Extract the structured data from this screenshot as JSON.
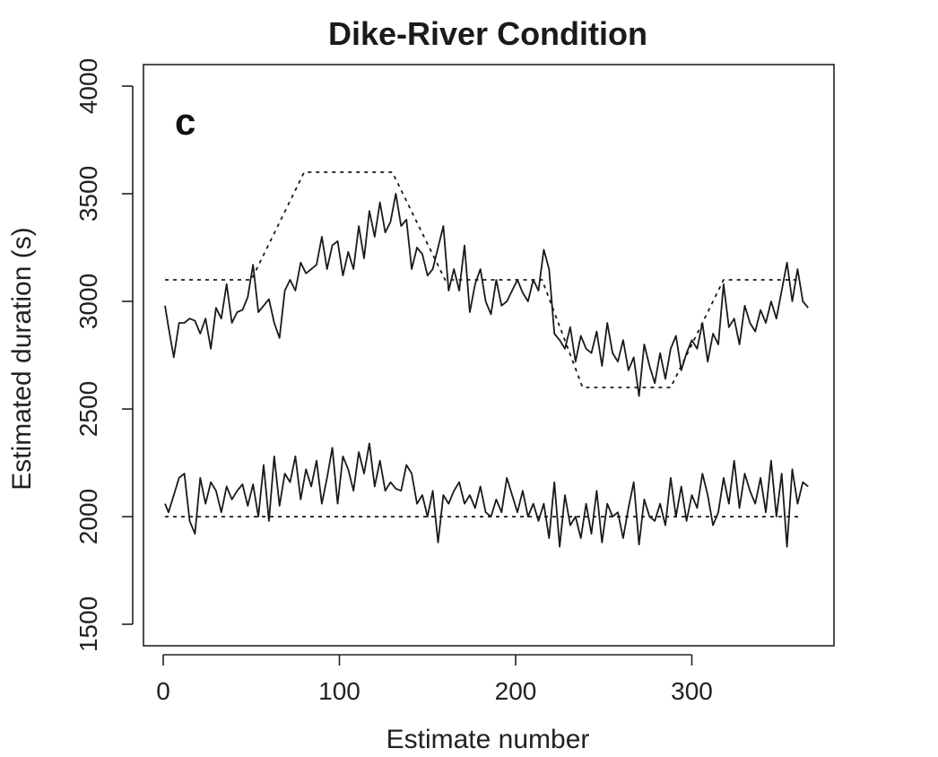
{
  "chart_data": {
    "type": "line",
    "title": "Dike-River Condition",
    "panel_label": "c",
    "xlabel": "Estimate number",
    "ylabel": "Estimated duration (s)",
    "xlim": [
      0,
      368
    ],
    "ylim": [
      1500,
      4000
    ],
    "x_ticks": [
      0,
      100,
      200,
      300
    ],
    "y_ticks": [
      1500,
      2000,
      2500,
      3000,
      3500,
      4000
    ],
    "grid": false,
    "series": [
      {
        "style": "dotted",
        "x": [
          1,
          50,
          80,
          130,
          160,
          215,
          238,
          288,
          318,
          362
        ],
        "y": [
          3100,
          3100,
          3600,
          3600,
          3100,
          3100,
          2600,
          2600,
          3100,
          3100
        ]
      },
      {
        "style": "solid",
        "x": [
          1,
          3,
          6,
          9,
          12,
          15,
          18,
          21,
          24,
          27,
          30,
          33,
          36,
          39,
          42,
          45,
          48,
          51,
          54,
          57,
          60,
          63,
          66,
          69,
          72,
          75,
          78,
          81,
          84,
          87,
          90,
          93,
          96,
          99,
          102,
          105,
          108,
          111,
          114,
          117,
          120,
          123,
          126,
          129,
          132,
          135,
          138,
          141,
          144,
          147,
          150,
          153,
          156,
          159,
          162,
          165,
          168,
          171,
          174,
          177,
          180,
          183,
          186,
          189,
          192,
          195,
          198,
          201,
          204,
          207,
          210,
          213,
          216,
          219,
          222,
          225,
          228,
          231,
          234,
          237,
          240,
          243,
          246,
          249,
          252,
          255,
          258,
          261,
          264,
          267,
          270,
          273,
          276,
          279,
          282,
          285,
          288,
          291,
          294,
          297,
          300,
          303,
          306,
          309,
          312,
          315,
          318,
          321,
          324,
          327,
          330,
          333,
          336,
          339,
          342,
          345,
          348,
          351,
          354,
          357,
          360,
          363,
          366
        ],
        "y": [
          2980,
          2880,
          2740,
          2900,
          2900,
          2920,
          2910,
          2850,
          2920,
          2780,
          2970,
          2920,
          3080,
          2900,
          2950,
          2960,
          3020,
          3170,
          2950,
          2980,
          3010,
          2900,
          2830,
          3050,
          3100,
          3050,
          3180,
          3130,
          3150,
          3170,
          3300,
          3150,
          3260,
          3280,
          3120,
          3230,
          3150,
          3350,
          3200,
          3420,
          3300,
          3460,
          3320,
          3370,
          3500,
          3350,
          3380,
          3150,
          3250,
          3220,
          3120,
          3150,
          3250,
          3350,
          3050,
          3150,
          3050,
          3260,
          2950,
          3080,
          3150,
          3000,
          2940,
          3100,
          2980,
          3000,
          3050,
          3100,
          3040,
          3000,
          3100,
          3050,
          3240,
          3150,
          2850,
          2820,
          2780,
          2880,
          2720,
          2840,
          2780,
          2760,
          2860,
          2700,
          2900,
          2760,
          2720,
          2820,
          2680,
          2740,
          2560,
          2800,
          2700,
          2620,
          2760,
          2640,
          2780,
          2840,
          2680,
          2760,
          2820,
          2780,
          2900,
          2720,
          2850,
          2800,
          3080,
          2880,
          2920,
          2800,
          2980,
          2900,
          2860,
          2960,
          2900,
          3000,
          2920,
          3050,
          3180,
          3000,
          3150,
          3000,
          2970
        ]
      },
      {
        "style": "dotted",
        "x": [
          1,
          362
        ],
        "y": [
          2000,
          2000
        ]
      },
      {
        "style": "solid",
        "x": [
          1,
          3,
          6,
          9,
          12,
          15,
          18,
          21,
          24,
          27,
          30,
          33,
          36,
          39,
          42,
          45,
          48,
          51,
          54,
          57,
          60,
          63,
          66,
          69,
          72,
          75,
          78,
          81,
          84,
          87,
          90,
          93,
          96,
          99,
          102,
          105,
          108,
          111,
          114,
          117,
          120,
          123,
          126,
          129,
          132,
          135,
          138,
          141,
          144,
          147,
          150,
          153,
          156,
          159,
          162,
          165,
          168,
          171,
          174,
          177,
          180,
          183,
          186,
          189,
          192,
          195,
          198,
          201,
          204,
          207,
          210,
          213,
          216,
          219,
          222,
          225,
          228,
          231,
          234,
          237,
          240,
          243,
          246,
          249,
          252,
          255,
          258,
          261,
          264,
          267,
          270,
          273,
          276,
          279,
          282,
          285,
          288,
          291,
          294,
          297,
          300,
          303,
          306,
          309,
          312,
          315,
          318,
          321,
          324,
          327,
          330,
          333,
          336,
          339,
          342,
          345,
          348,
          351,
          354,
          357,
          360,
          363,
          366
        ],
        "y": [
          2060,
          2020,
          2100,
          2180,
          2200,
          1980,
          1920,
          2180,
          2060,
          2160,
          2120,
          2020,
          2140,
          2080,
          2120,
          2150,
          2050,
          2150,
          2000,
          2240,
          1980,
          2280,
          2050,
          2200,
          2160,
          2280,
          2080,
          2220,
          2140,
          2260,
          2060,
          2180,
          2320,
          2060,
          2280,
          2220,
          2120,
          2300,
          2200,
          2340,
          2140,
          2260,
          2120,
          2160,
          2130,
          2120,
          2240,
          2200,
          2060,
          2100,
          2000,
          2120,
          1880,
          2100,
          2060,
          2120,
          2160,
          2060,
          2100,
          2040,
          2140,
          2020,
          2000,
          2080,
          2020,
          2180,
          2100,
          2020,
          2120,
          2000,
          2060,
          1980,
          2060,
          1900,
          2160,
          1860,
          2100,
          1960,
          2000,
          1900,
          2060,
          1920,
          2120,
          1880,
          2060,
          2000,
          2020,
          1900,
          2040,
          2160,
          1870,
          2080,
          2000,
          1980,
          2060,
          1960,
          2180,
          2000,
          2140,
          1980,
          2100,
          2040,
          2200,
          2100,
          1960,
          2020,
          2180,
          2060,
          2260,
          2040,
          2200,
          2120,
          2060,
          2180,
          2020,
          2260,
          2000,
          2200,
          1860,
          2220,
          2060,
          2160,
          2140
        ]
      }
    ]
  }
}
